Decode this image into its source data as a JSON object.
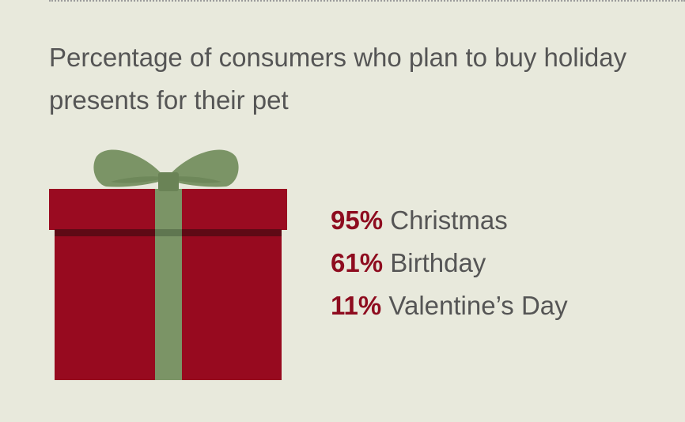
{
  "colors": {
    "background": "#e8e9dc",
    "accent": "#8e0c1f",
    "box": "#970a1f",
    "ribbon": "#7b9466",
    "text": "#555555"
  },
  "chart_data": {
    "type": "table",
    "title": "Percentage of consumers who plan to buy holiday presents for their pet",
    "unit": "%",
    "categories": [
      "Christmas",
      "Birthday",
      "Valentine’s Day"
    ],
    "values": [
      95,
      61,
      11
    ],
    "labels": [
      "95%",
      "61%",
      "11%"
    ]
  },
  "illustration": {
    "icon": "gift-box-icon"
  }
}
